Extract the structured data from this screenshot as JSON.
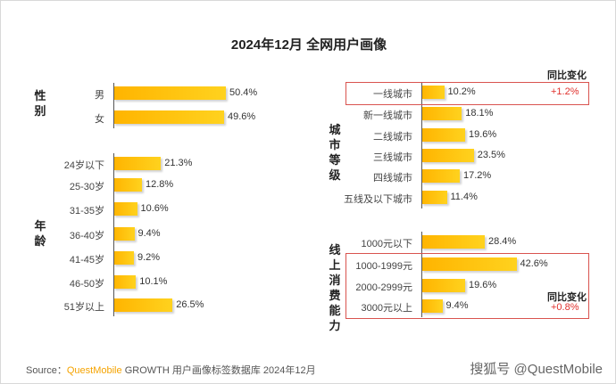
{
  "chart_data": {
    "type": "bar",
    "title": "2024年12月 全网用户画像",
    "left": {
      "groups": [
        {
          "name": "性别",
          "categories": [
            "男",
            "女"
          ],
          "values": [
            50.4,
            49.6
          ]
        },
        {
          "name": "年龄",
          "categories": [
            "24岁以下",
            "25-30岁",
            "31-35岁",
            "36-40岁",
            "41-45岁",
            "46-50岁",
            "51岁以上"
          ],
          "values": [
            21.3,
            12.8,
            10.6,
            9.4,
            9.2,
            10.1,
            26.5
          ]
        }
      ]
    },
    "right": {
      "groups": [
        {
          "name": "城市等级",
          "categories": [
            "一线城市",
            "新一线城市",
            "二线城市",
            "三线城市",
            "四线城市",
            "五线及以下城市"
          ],
          "values": [
            10.2,
            18.1,
            19.6,
            23.5,
            17.2,
            11.4
          ]
        },
        {
          "name": "线上消费能力",
          "categories": [
            "1000元以下",
            "1000-1999元",
            "2000-2999元",
            "3000元以上"
          ],
          "values": [
            28.4,
            42.6,
            19.6,
            9.4
          ]
        }
      ],
      "yoy_header": "同比变化",
      "yoy": [
        {
          "group": "城市等级",
          "categories": [
            "一线城市"
          ],
          "value": "+1.2%"
        },
        {
          "group": "线上消费能力",
          "categories": [
            "1000-1999元",
            "2000-2999元",
            "3000元以上"
          ],
          "value": "+0.8%"
        }
      ]
    },
    "unit": "%"
  },
  "source": {
    "prefix": "Source：",
    "brand": "QuestMobile",
    "text": "GROWTH 用户画像标签数据库 2024年12月"
  },
  "credit": "搜狐号 @QuestMobile",
  "watermark": "QUESTMOBILE",
  "colors": {
    "bar": "#ffb400",
    "highlight": "#d9534f",
    "change": "#e0312d"
  }
}
